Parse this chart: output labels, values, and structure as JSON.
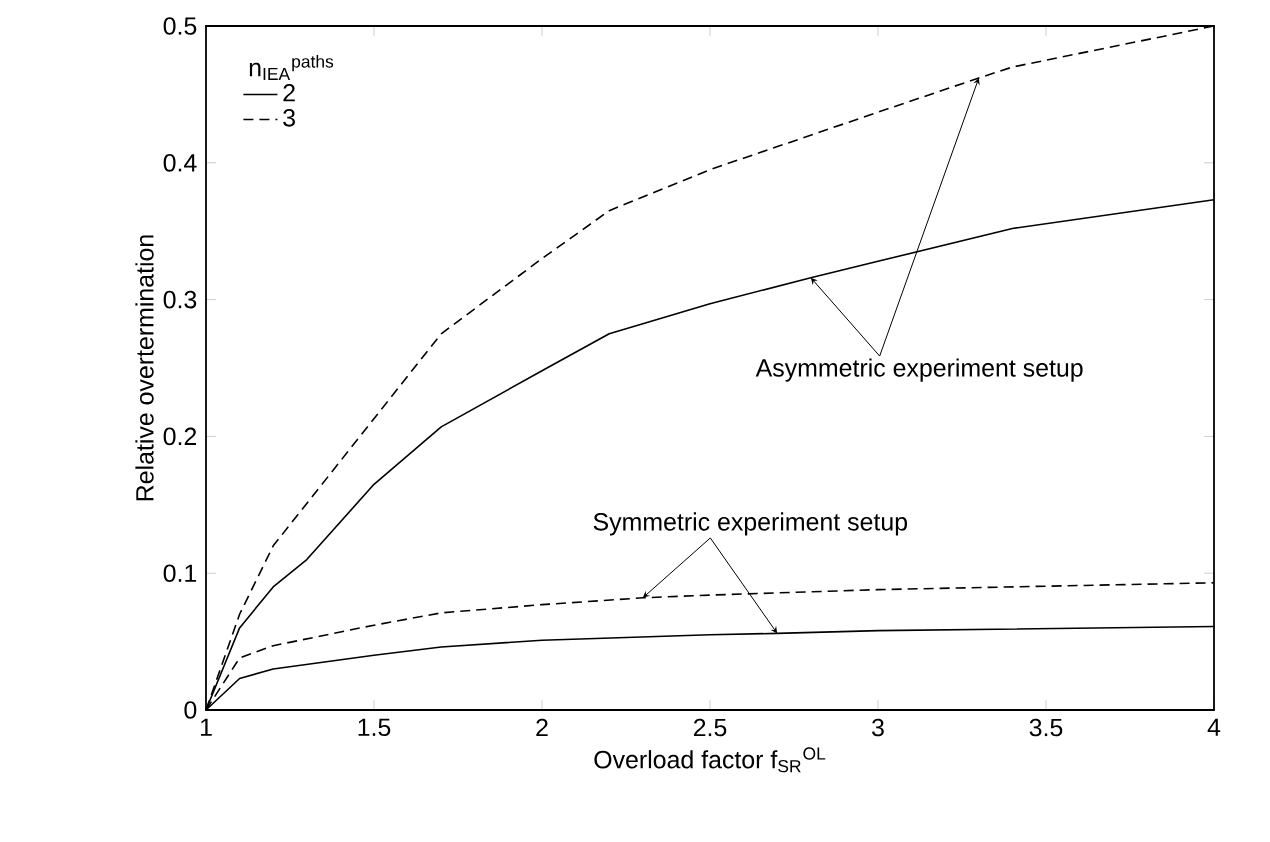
{
  "chart_data": {
    "type": "line",
    "xlabel": "Overload factor f$_{SR}$$^{OL}$",
    "ylabel": "Relative overtermination",
    "legend_title": "n$_{IEA}$$^{paths}$",
    "legend": "top left",
    "marker": "none",
    "xlim": [
      1,
      4
    ],
    "ylim": [
      0,
      0.5
    ],
    "xticks": [
      1,
      1.5,
      2,
      2.5,
      3,
      3.5,
      4
    ],
    "yticks": [
      0,
      0.1,
      0.2,
      0.3,
      0.4,
      0.5
    ],
    "series": [
      {
        "name": "2",
        "color": "#000000",
        "line_style": "solid",
        "x": [
          1,
          1.1,
          1.2,
          1.3,
          1.5,
          1.7,
          2,
          2.2,
          2.5,
          2.8,
          3,
          3.4,
          4
        ],
        "values": [
          0,
          0.06,
          0.09,
          0.11,
          0.165,
          0.207,
          0.248,
          0.275,
          0.297,
          0.316,
          0.328,
          0.352,
          0.373
        ]
      },
      {
        "name": "3",
        "color": "#000000",
        "line_style": "dashed",
        "x": [
          1,
          1.1,
          1.2,
          1.7,
          2,
          2.2,
          2.5,
          3,
          3.3,
          3.4,
          4
        ],
        "values": [
          0,
          0.07,
          0.12,
          0.275,
          0.33,
          0.365,
          0.395,
          0.437,
          0.462,
          0.47,
          0.5
        ]
      },
      {
        "color": "#000000",
        "line_style": "solid",
        "x": [
          1,
          1.1,
          1.2,
          1.5,
          1.7,
          2,
          2.5,
          2.7,
          3,
          4
        ],
        "values": [
          0,
          0.023,
          0.03,
          0.04,
          0.046,
          0.051,
          0.055,
          0.056,
          0.058,
          0.061
        ]
      },
      {
        "color": "#000000",
        "line_style": "dashed",
        "x": [
          1,
          1.1,
          1.2,
          1.5,
          1.7,
          2,
          2.3,
          2.5,
          3,
          4
        ],
        "values": [
          0,
          0.038,
          0.047,
          0.062,
          0.071,
          0.077,
          0.082,
          0.084,
          0.088,
          0.093
        ]
      }
    ],
    "annotations": [
      {
        "text": "Asymmetric experiment setup",
        "x": 2.8,
        "y": 0.316
      },
      {
        "text": "Symmetric experiment setup",
        "x": 2.3,
        "y": 0.082
      }
    ]
  }
}
